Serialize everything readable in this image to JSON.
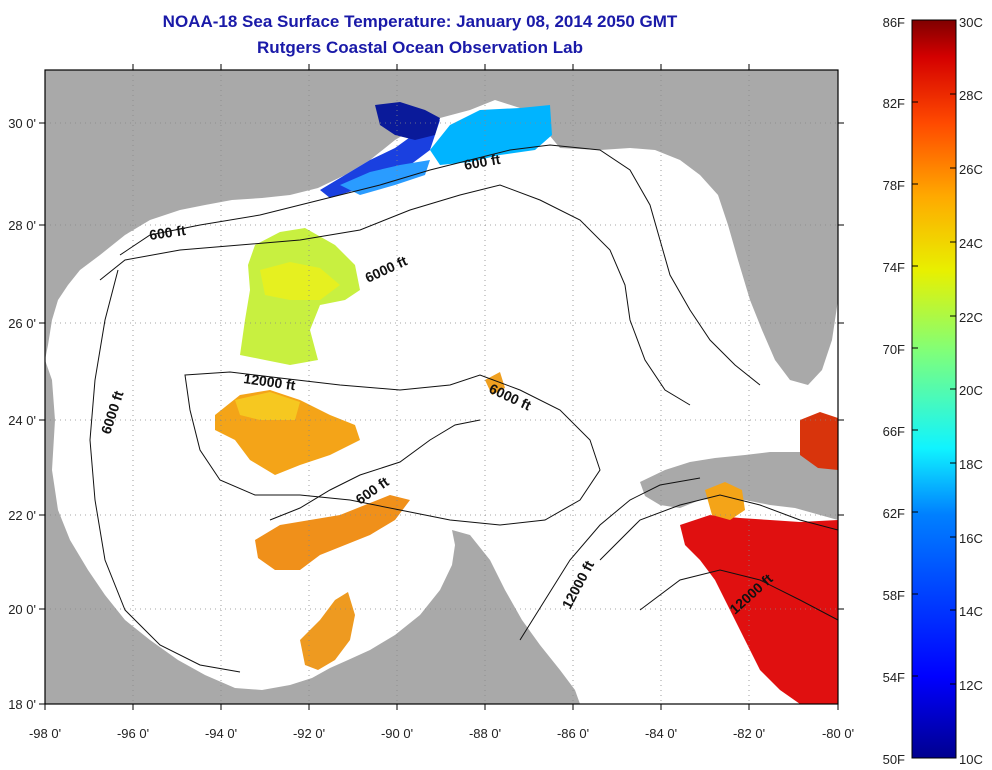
{
  "header": {
    "title": "NOAA-18 Sea Surface Temperature:  January 08, 2014 2050 GMT",
    "subtitle": "Rutgers Coastal Ocean Observation Lab"
  },
  "axes": {
    "x_ticks": [
      "-98 0'",
      "-96 0'",
      "-94 0'",
      "-92 0'",
      "-90 0'",
      "-88 0'",
      "-86 0'",
      "-84 0'",
      "-82 0'",
      "-80 0'"
    ],
    "y_ticks": [
      "18 0'",
      "20 0'",
      "22 0'",
      "24 0'",
      "26 0'",
      "28 0'",
      "30 0'"
    ],
    "lon_range": [
      -98,
      -80
    ],
    "lat_range": [
      18,
      31
    ]
  },
  "contour_labels": [
    "600 ft",
    "600 ft",
    "600 ft",
    "6000 ft",
    "6000 ft",
    "6000 ft",
    "12000 ft",
    "12000 ft",
    "12000 ft"
  ],
  "colorbar": {
    "fahrenheit": [
      "86F",
      "82F",
      "78F",
      "74F",
      "70F",
      "66F",
      "62F",
      "58F",
      "54F",
      "50F"
    ],
    "celsius": [
      "30C",
      "28C",
      "26C",
      "24C",
      "22C",
      "20C",
      "18C",
      "16C",
      "14C",
      "12C",
      "10C"
    ],
    "colormap": [
      "#7f0000",
      "#d40000",
      "#ff4a00",
      "#ffaa00",
      "#e8f000",
      "#7fff7a",
      "#10f4ff",
      "#0080ff",
      "#0000ff",
      "#00008f"
    ]
  },
  "colors": {
    "land": "#a9a9a9",
    "title": "#1a1aa8"
  }
}
